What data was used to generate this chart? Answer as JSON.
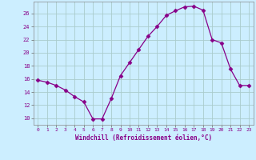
{
  "x": [
    0,
    1,
    2,
    3,
    4,
    5,
    6,
    7,
    8,
    9,
    10,
    11,
    12,
    13,
    14,
    15,
    16,
    17,
    18,
    19,
    20,
    21,
    22,
    23
  ],
  "y": [
    15.8,
    15.5,
    15.0,
    14.3,
    13.3,
    12.5,
    9.9,
    9.9,
    13.0,
    16.5,
    18.5,
    20.5,
    22.5,
    24.0,
    25.7,
    26.4,
    27.0,
    27.1,
    26.5,
    22.0,
    21.5,
    17.5,
    15.0,
    15.0
  ],
  "line_color": "#880088",
  "marker": "D",
  "marker_size": 2.5,
  "bg_color": "#cceeff",
  "grid_color": "#aacccc",
  "xlabel": "Windchill (Refroidissement éolien,°C)",
  "xlabel_color": "#880088",
  "tick_color": "#880088",
  "yticks": [
    10,
    12,
    14,
    16,
    18,
    20,
    22,
    24,
    26
  ],
  "ylim": [
    9.0,
    27.8
  ],
  "xlim": [
    -0.5,
    23.5
  ],
  "xticks": [
    0,
    1,
    2,
    3,
    4,
    5,
    6,
    7,
    8,
    9,
    10,
    11,
    12,
    13,
    14,
    15,
    16,
    17,
    18,
    19,
    20,
    21,
    22,
    23
  ]
}
